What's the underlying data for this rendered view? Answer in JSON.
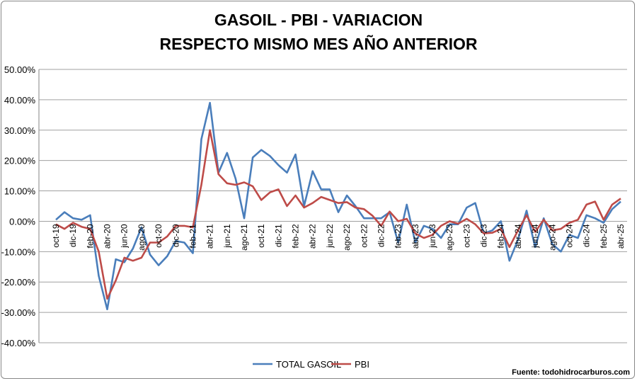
{
  "chart_data": {
    "type": "line",
    "title": [
      "GASOIL - PBI - VARIACION",
      "RESPECTO MISMO MES AÑO ANTERIOR"
    ],
    "xlabel": "",
    "ylabel": "",
    "ylim": [
      -40,
      50
    ],
    "yticks": [
      "-40.00%",
      "-30.00%",
      "-20.00%",
      "-10.00%",
      "0.00%",
      "10.00%",
      "20.00%",
      "30.00%",
      "40.00%",
      "50.00%"
    ],
    "ytick_values": [
      -40,
      -30,
      -20,
      -10,
      0,
      10,
      20,
      30,
      40,
      50
    ],
    "grid": true,
    "legend_position": "bottom",
    "x": [
      "oct-19",
      "nov-19",
      "dic-19",
      "ene-20",
      "feb-20",
      "mar-20",
      "abr-20",
      "may-20",
      "jun-20",
      "jul-20",
      "ago-20",
      "sep-20",
      "oct-20",
      "nov-20",
      "dic-20",
      "ene-21",
      "feb-21",
      "mar-21",
      "abr-21",
      "may-21",
      "jun-21",
      "jul-21",
      "ago-21",
      "sep-21",
      "oct-21",
      "nov-21",
      "dic-21",
      "ene-22",
      "feb-22",
      "mar-22",
      "abr-22",
      "may-22",
      "jun-22",
      "jul-22",
      "ago-22",
      "sep-22",
      "oct-22",
      "nov-22",
      "dic-22",
      "ene-23",
      "feb-23",
      "mar-23",
      "abr-23",
      "may-23",
      "jun-23",
      "jul-23",
      "ago-23",
      "sep-23",
      "oct-23",
      "nov-23",
      "dic-23",
      "ene-24",
      "feb-24",
      "mar-24",
      "abr-24",
      "may-24",
      "jun-24",
      "jul-24",
      "ago-24",
      "sep-24",
      "oct-24",
      "nov-24",
      "dic-24",
      "ene-25",
      "feb-25",
      "mar-25",
      "abr-25"
    ],
    "xtick_labels": [
      "oct-19",
      "dic-19",
      "feb-20",
      "abr-20",
      "jun-20",
      "ago-20",
      "oct-20",
      "dic-20",
      "feb-21",
      "abr-21",
      "jun-21",
      "ago-21",
      "oct-21",
      "dic-21",
      "feb-22",
      "abr-22",
      "jun-22",
      "ago-22",
      "oct-22",
      "dic-22",
      "feb-23",
      "abr-23",
      "jun-23",
      "ago-23",
      "oct-23",
      "dic-23",
      "feb-24",
      "abr-24",
      "jun-24",
      "ago-24",
      "oct-24",
      "dic-24",
      "feb-25",
      "abr-25"
    ],
    "series": [
      {
        "name": "TOTAL GASOIL",
        "color": "#4a7ebb",
        "values": [
          0.5,
          3,
          1,
          0.5,
          2,
          -18,
          -29,
          -12.5,
          -13.5,
          -9,
          -2,
          -11,
          -14.5,
          -11.5,
          -6.5,
          -7,
          -10.5,
          27,
          39,
          16,
          22.5,
          14,
          1,
          21,
          23.5,
          21.5,
          18.5,
          16,
          22,
          5,
          16.5,
          10.5,
          10.5,
          3,
          8.5,
          5,
          1,
          1,
          1,
          3,
          -7,
          5.5,
          -7,
          -1.5,
          -2.5,
          -5.5,
          -1,
          -1,
          4.5,
          6,
          -4,
          -3,
          0,
          -13,
          -6,
          3.5,
          -8.5,
          1,
          -7.5,
          -10,
          -4.5,
          -5.5,
          2,
          1,
          -0.5,
          4,
          6.5
        ]
      },
      {
        "name": "PBI",
        "color": "#be4b48",
        "values": [
          -1,
          -2.5,
          -0.5,
          -1.8,
          -2.5,
          -10,
          -25.5,
          -19.5,
          -12,
          -13,
          -12,
          -7,
          -7,
          -5,
          -1.5,
          -1.5,
          -2,
          12,
          30,
          15.5,
          12.5,
          12,
          12.8,
          11.5,
          7,
          9.5,
          10.5,
          5,
          8.5,
          4.5,
          6,
          8,
          7,
          6,
          6.3,
          4.5,
          4,
          1.8,
          -1.5,
          3.2,
          0,
          0.8,
          -4,
          -5.5,
          -4.5,
          -1.5,
          0,
          -0.8,
          0.8,
          -1,
          -4,
          -3.8,
          -2.5,
          -8.5,
          -3,
          2,
          -3.5,
          0.5,
          -3,
          -2.5,
          -0.5,
          0.5,
          5.5,
          6.5,
          0.5,
          5.5,
          7.5
        ]
      }
    ]
  },
  "source": "Fuente: todohidrocarburos.com"
}
